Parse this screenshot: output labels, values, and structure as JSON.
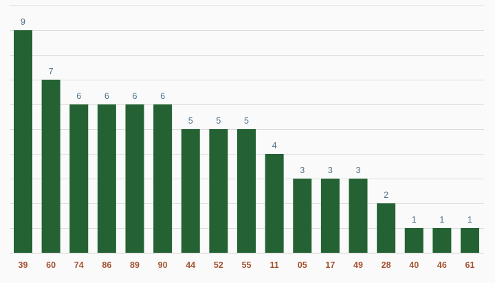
{
  "chart_data": {
    "type": "bar",
    "categories": [
      "39",
      "60",
      "74",
      "86",
      "89",
      "90",
      "44",
      "52",
      "55",
      "11",
      "05",
      "17",
      "49",
      "28",
      "40",
      "46",
      "61"
    ],
    "values": [
      9,
      7,
      6,
      6,
      6,
      6,
      5,
      5,
      5,
      4,
      3,
      3,
      3,
      2,
      1,
      1,
      1
    ],
    "value_labels": [
      "9",
      "7",
      "6",
      "6",
      "6",
      "6",
      "5",
      "5",
      "5",
      "4",
      "3",
      "3",
      "3",
      "2",
      "1",
      "1",
      "1"
    ],
    "title": "",
    "xlabel": "",
    "ylabel": "",
    "ylim": [
      0,
      10
    ],
    "grid": true,
    "grid_step": 1,
    "colors": {
      "bar": "#246234",
      "value_label": "#4f7088",
      "tick_label": "#a4522f",
      "grid": "#dcdcdc",
      "background": "#fafafa"
    }
  }
}
